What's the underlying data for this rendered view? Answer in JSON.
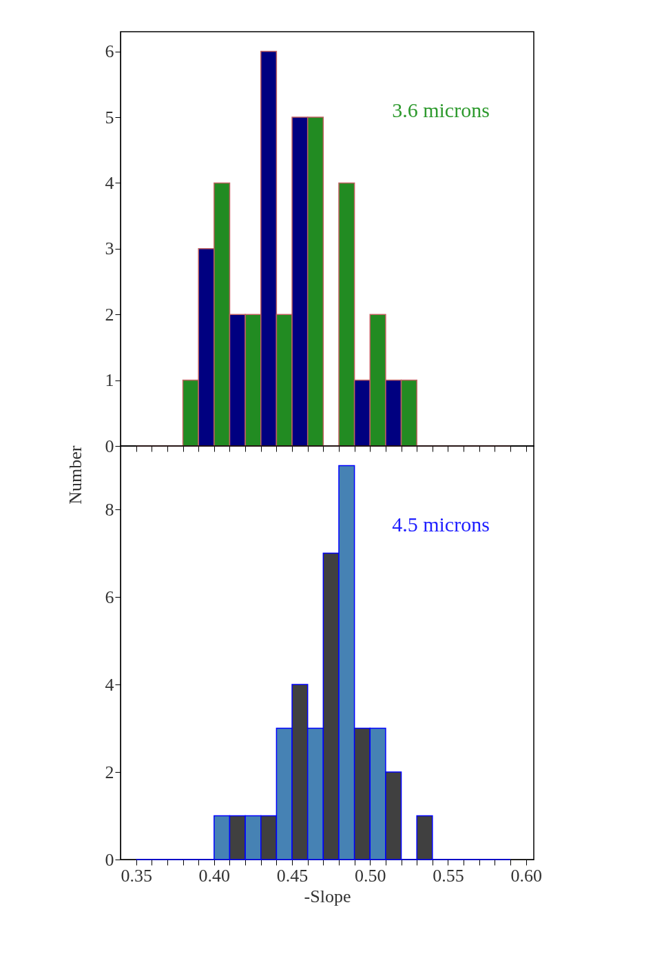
{
  "chart_data": [
    {
      "type": "histogram",
      "ylabel": "Number",
      "annotations": [
        "3.6 microns"
      ],
      "bins": [
        0.35,
        0.36,
        0.37,
        0.38,
        0.39,
        0.4,
        0.41,
        0.42,
        0.43,
        0.44,
        0.45,
        0.46,
        0.47,
        0.48,
        0.49,
        0.5,
        0.51,
        0.52,
        0.53,
        0.54,
        0.55,
        0.56,
        0.57,
        0.58,
        0.59
      ],
      "values": [
        0,
        0,
        0,
        1,
        3,
        4,
        2,
        2,
        6,
        2,
        5,
        5,
        0,
        4,
        1,
        2,
        1,
        1,
        0,
        0,
        0,
        0,
        0,
        0
      ],
      "colors": [
        "#c06060",
        "#c06060",
        "#c06060",
        "#228b22",
        "#000080",
        "#228b22",
        "#000080",
        "#228b22",
        "#000080",
        "#228b22",
        "#000080",
        "#228b22",
        "#c06060",
        "#228b22",
        "#000080",
        "#228b22",
        "#000080",
        "#228b22",
        "#c06060",
        "#c06060",
        "#c06060",
        "#c06060",
        "#c06060",
        "#c06060"
      ],
      "xlim": [
        0.34,
        0.605
      ],
      "ylim": [
        0,
        6.3
      ],
      "yticks": [
        0,
        1,
        2,
        3,
        4,
        5,
        6
      ],
      "xticks": [
        {
          "value": 0.35,
          "label": null
        },
        {
          "value": 0.36,
          "label": null
        },
        {
          "value": 0.37,
          "label": null
        },
        {
          "value": 0.38,
          "label": null
        },
        {
          "value": 0.39,
          "label": null
        },
        {
          "value": 0.4,
          "label": null
        },
        {
          "value": 0.41,
          "label": null
        },
        {
          "value": 0.42,
          "label": null
        },
        {
          "value": 0.43,
          "label": null
        },
        {
          "value": 0.44,
          "label": null
        },
        {
          "value": 0.45,
          "label": null
        },
        {
          "value": 0.46,
          "label": null
        },
        {
          "value": 0.47,
          "label": null
        },
        {
          "value": 0.48,
          "label": null
        },
        {
          "value": 0.49,
          "label": null
        },
        {
          "value": 0.5,
          "label": null
        },
        {
          "value": 0.51,
          "label": null
        },
        {
          "value": 0.52,
          "label": null
        },
        {
          "value": 0.53,
          "label": null
        },
        {
          "value": 0.54,
          "label": null
        },
        {
          "value": 0.55,
          "label": null
        },
        {
          "value": 0.56,
          "label": null
        },
        {
          "value": 0.57,
          "label": null
        },
        {
          "value": 0.58,
          "label": null
        },
        {
          "value": 0.59,
          "label": null
        },
        {
          "value": 0.6,
          "label": null
        }
      ],
      "tick_labels": "y",
      "grid": false
    },
    {
      "type": "histogram",
      "xlabel": "-Slope",
      "annotations": [
        "4.5 microns"
      ],
      "bins": [
        0.35,
        0.36,
        0.37,
        0.38,
        0.39,
        0.4,
        0.41,
        0.42,
        0.43,
        0.44,
        0.45,
        0.46,
        0.47,
        0.48,
        0.49,
        0.5,
        0.51,
        0.52,
        0.53,
        0.54,
        0.55,
        0.56,
        0.57,
        0.58,
        0.59
      ],
      "values": [
        0,
        0,
        0,
        0,
        0,
        1,
        1,
        1,
        1,
        3,
        4,
        3,
        7,
        9,
        3,
        3,
        2,
        0,
        1,
        0,
        0,
        0,
        0,
        0
      ],
      "colors": [
        "#0000ff",
        "#0000ff",
        "#0000ff",
        "#0000ff",
        "#0000ff",
        "#4682b4",
        "#404040",
        "#4682b4",
        "#404040",
        "#4682b4",
        "#404040",
        "#4682b4",
        "#404040",
        "#4682b4",
        "#404040",
        "#4682b4",
        "#404040",
        "#0000ff",
        "#404040",
        "#0000ff",
        "#0000ff",
        "#0000ff",
        "#0000ff",
        "#0000ff"
      ],
      "xlim": [
        0.34,
        0.605
      ],
      "ylim": [
        0,
        9.45
      ],
      "yticks": [
        0,
        2,
        4,
        6,
        8
      ],
      "xticks": [
        0.35,
        {
          "value": 0.36,
          "label": null
        },
        {
          "value": 0.37,
          "label": null
        },
        {
          "value": 0.38,
          "label": null
        },
        {
          "value": 0.39,
          "label": null
        },
        {
          "value": 0.4,
          "label": "0.40"
        },
        {
          "value": 0.41,
          "label": null
        },
        {
          "value": 0.42,
          "label": null
        },
        {
          "value": 0.43,
          "label": null
        },
        {
          "value": 0.44,
          "label": null
        },
        0.45,
        {
          "value": 0.46,
          "label": null
        },
        {
          "value": 0.47,
          "label": null
        },
        {
          "value": 0.48,
          "label": null
        },
        {
          "value": 0.49,
          "label": null
        },
        {
          "value": 0.5,
          "label": "0.50"
        },
        {
          "value": 0.51,
          "label": null
        },
        {
          "value": 0.52,
          "label": null
        },
        {
          "value": 0.53,
          "label": null
        },
        {
          "value": 0.54,
          "label": null
        },
        0.55,
        {
          "value": 0.56,
          "label": null
        },
        {
          "value": 0.57,
          "label": null
        },
        {
          "value": 0.58,
          "label": null
        },
        {
          "value": 0.59,
          "label": null
        },
        {
          "value": 0.6,
          "label": "0.60"
        }
      ],
      "grid": false
    }
  ]
}
